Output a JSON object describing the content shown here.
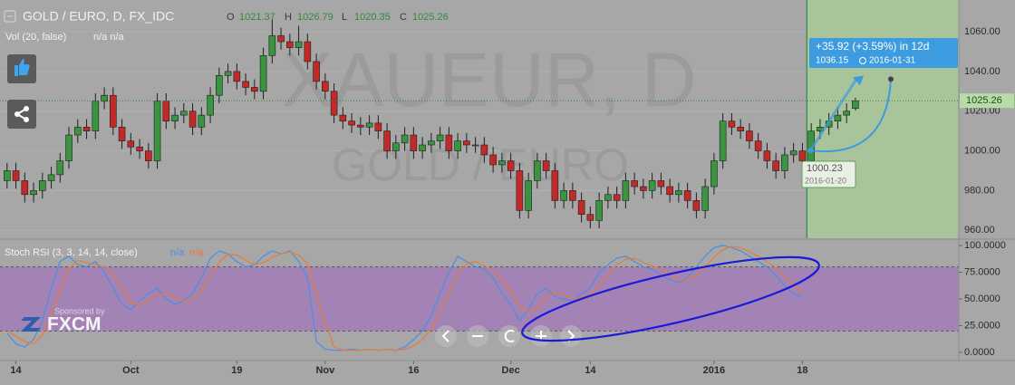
{
  "chart_data": [
    {
      "type": "candlestick",
      "title": "GOLD / EURO, D, FX_IDC",
      "ohlc_legend": [
        {
          "label": "O",
          "value": 1021.37
        },
        {
          "label": "H",
          "value": 1026.79
        },
        {
          "label": "L",
          "value": 1020.35
        },
        {
          "label": "C",
          "value": 1025.26
        }
      ],
      "volume": {
        "title": "Vol (20, false)",
        "readout": "n/a  n/a"
      },
      "watermark": [
        "XAUEUR, D",
        "GOLD / EURO"
      ],
      "up_color": "#3a9440",
      "down_color": "#c22a2a",
      "open": [
        985,
        990,
        985,
        978,
        980,
        985,
        988,
        995,
        1008,
        1012,
        1010,
        1025,
        1028,
        1012,
        1005,
        1002,
        1000,
        995,
        1025,
        1015,
        1018,
        1020,
        1012,
        1018,
        1028,
        1038,
        1040,
        1035,
        1032,
        1030,
        1048,
        1058,
        1055,
        1052,
        1055,
        1045,
        1035,
        1030,
        1018,
        1015,
        1013,
        1012,
        1014,
        1010,
        1000,
        1004,
        1008,
        1000,
        1003,
        1005,
        1008,
        1000,
        1005,
        1003,
        1003,
        998,
        993,
        995,
        990,
        970,
        985,
        995,
        990,
        975,
        980,
        975,
        968,
        965,
        975,
        978,
        975,
        985,
        982,
        980,
        985,
        982,
        978,
        980,
        975,
        970,
        982,
        995,
        1015,
        1012,
        1010,
        1005,
        1000,
        995,
        990,
        998,
        1000,
        995,
        1010,
        1012,
        1015,
        1018,
        1021.37
      ],
      "high": [
        994,
        994,
        989,
        984,
        989,
        992,
        999,
        1012,
        1016,
        1016,
        1029,
        1032,
        1032,
        1016,
        1009,
        1006,
        1004,
        1029,
        1029,
        1022,
        1024,
        1024,
        1022,
        1032,
        1042,
        1044,
        1044,
        1039,
        1036,
        1052,
        1066,
        1062,
        1059,
        1063,
        1059,
        1049,
        1039,
        1034,
        1022,
        1019,
        1017,
        1018,
        1018,
        1014,
        1008,
        1012,
        1012,
        1007,
        1009,
        1012,
        1012,
        1009,
        1009,
        1007,
        1007,
        1002,
        999,
        999,
        994,
        989,
        999,
        999,
        994,
        984,
        984,
        979,
        972,
        979,
        982,
        982,
        989,
        989,
        986,
        989,
        989,
        986,
        984,
        984,
        979,
        986,
        999,
        1019,
        1019,
        1016,
        1014,
        1009,
        1004,
        999,
        1002,
        1004,
        1004,
        1014,
        1016,
        1019,
        1022,
        1024,
        1026.79
      ],
      "low": [
        981,
        981,
        974,
        974,
        976,
        981,
        984,
        991,
        1004,
        1006,
        1006,
        1021,
        1008,
        1001,
        998,
        996,
        991,
        991,
        1011,
        1011,
        1014,
        1008,
        1008,
        1014,
        1024,
        1034,
        1031,
        1028,
        1026,
        1026,
        1044,
        1051,
        1048,
        1048,
        1041,
        1031,
        1026,
        1014,
        1011,
        1009,
        1008,
        1008,
        1006,
        996,
        996,
        1000,
        996,
        996,
        999,
        1001,
        996,
        996,
        999,
        999,
        994,
        989,
        989,
        986,
        966,
        966,
        981,
        986,
        971,
        971,
        971,
        964,
        961,
        961,
        971,
        971,
        971,
        978,
        976,
        976,
        978,
        974,
        974,
        971,
        966,
        966,
        978,
        991,
        1008,
        1006,
        1001,
        996,
        991,
        986,
        986,
        994,
        991,
        991,
        1006,
        1008,
        1011,
        1014,
        1020.35
      ],
      "close": [
        990,
        985,
        978,
        980,
        985,
        988,
        995,
        1008,
        1012,
        1010,
        1025,
        1028,
        1012,
        1005,
        1002,
        1000,
        995,
        1025,
        1015,
        1018,
        1020,
        1012,
        1018,
        1028,
        1038,
        1040,
        1035,
        1032,
        1030,
        1048,
        1058,
        1055,
        1052,
        1055,
        1045,
        1035,
        1030,
        1018,
        1015,
        1013,
        1012,
        1014,
        1010,
        1000,
        1004,
        1008,
        1000,
        1003,
        1005,
        1008,
        1000,
        1005,
        1003,
        1003,
        998,
        993,
        995,
        990,
        970,
        985,
        995,
        990,
        975,
        980,
        975,
        968,
        965,
        975,
        978,
        975,
        985,
        982,
        980,
        985,
        982,
        978,
        980,
        975,
        970,
        982,
        995,
        1015,
        1012,
        1010,
        1005,
        1000,
        995,
        990,
        998,
        1000,
        995,
        1010,
        1012,
        1015,
        1018,
        1020,
        1025.26
      ],
      "last_price": 1025.26,
      "projection": {
        "change": "+35.92 (+3.59%) in 12d",
        "start_price": 1000.23,
        "start_date": "2016-01-20",
        "end_price": 1036.15,
        "end_date": "2016-01-31"
      },
      "xlim": [
        -0.8,
        107.7
      ],
      "ylim": [
        956,
        1076
      ],
      "yticks": [
        {
          "value": 960,
          "label": "960.00"
        },
        {
          "value": 980,
          "label": "980.00"
        },
        {
          "value": 1000,
          "label": "1000.00"
        },
        {
          "value": 1020,
          "label": "1020.00"
        },
        {
          "value": 1040,
          "label": "1040.00"
        },
        {
          "value": 1060,
          "label": "1060.00"
        }
      ],
      "grid": true
    },
    {
      "type": "line",
      "title": "Stoch RSI (3, 3, 14, 14, close)",
      "series": [
        {
          "name": "n/a",
          "color": "#4a8fe0",
          "values": [
            18,
            8,
            5,
            12,
            30,
            60,
            85,
            90,
            82,
            80,
            85,
            75,
            60,
            45,
            40,
            48,
            55,
            60,
            50,
            45,
            48,
            55,
            70,
            88,
            95,
            92,
            85,
            80,
            82,
            90,
            95,
            92,
            95,
            85,
            70,
            10,
            3,
            2,
            2,
            3,
            2,
            3,
            2,
            3,
            2,
            5,
            12,
            20,
            35,
            55,
            75,
            90,
            85,
            80,
            78,
            70,
            55,
            45,
            30,
            40,
            55,
            60,
            52,
            50,
            48,
            55,
            60,
            75,
            82,
            88,
            90,
            85,
            80,
            78,
            72,
            68,
            65,
            70,
            80,
            90,
            98,
            100,
            98,
            95,
            90,
            85,
            80,
            72,
            62,
            55,
            52,
            null,
            null,
            null,
            null,
            null,
            null
          ]
        },
        {
          "name": "n/a",
          "color": "#e87a3a",
          "values": [
            20,
            15,
            10,
            8,
            16,
            34,
            58,
            78,
            86,
            84,
            82,
            80,
            73,
            60,
            48,
            44,
            48,
            54,
            55,
            52,
            48,
            49,
            58,
            71,
            84,
            92,
            91,
            86,
            82,
            84,
            89,
            92,
            94,
            91,
            83,
            55,
            28,
            5,
            2,
            2,
            2,
            3,
            2,
            3,
            2,
            3,
            6,
            12,
            22,
            37,
            55,
            73,
            83,
            85,
            81,
            76,
            68,
            57,
            43,
            38,
            42,
            52,
            56,
            54,
            50,
            51,
            54,
            63,
            72,
            82,
            87,
            88,
            84,
            81,
            77,
            73,
            68,
            68,
            72,
            80,
            89,
            96,
            99,
            98,
            94,
            90,
            85,
            79,
            71,
            63,
            56,
            null,
            null,
            null,
            null,
            null,
            null
          ]
        }
      ],
      "band": [
        20,
        80
      ],
      "xlim": [
        -0.8,
        107.7
      ],
      "ylim": [
        -7.6,
        105.9
      ],
      "yticks": [
        {
          "value": 0,
          "label": "0.0000"
        },
        {
          "value": 25,
          "label": "25.0000"
        },
        {
          "value": 50,
          "label": "50.0000"
        },
        {
          "value": 75,
          "label": "75.0000"
        },
        {
          "value": 100,
          "label": "100.0000"
        }
      ],
      "xticks": [
        {
          "value": 1,
          "label": "14"
        },
        {
          "value": 14,
          "label": "Oct"
        },
        {
          "value": 26,
          "label": "19"
        },
        {
          "value": 36,
          "label": "Nov"
        },
        {
          "value": 46,
          "label": "16"
        },
        {
          "value": 57,
          "label": "Dec"
        },
        {
          "value": 66,
          "label": "14"
        },
        {
          "value": 80,
          "label": "2016"
        },
        {
          "value": 90,
          "label": "18"
        }
      ]
    }
  ],
  "sponsor": {
    "text": "Sponsored by",
    "brand": "FXCM"
  }
}
